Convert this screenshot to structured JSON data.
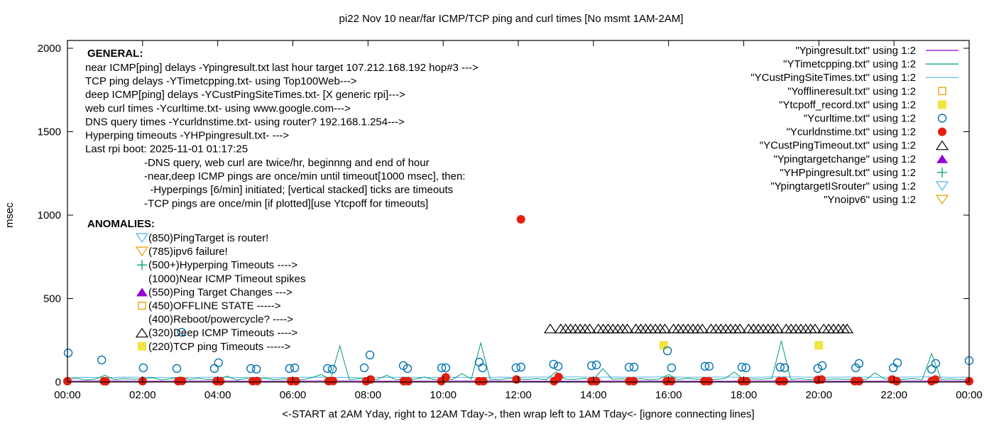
{
  "chart_data": {
    "type": "scatter",
    "title": "pi22 Nov 10  near/far ICMP/TCP ping and curl times [No msmt 1AM-2AM]",
    "xlabel": "<-START at 2AM Yday, right to 12AM Tday->, then wrap left to 1AM Tday<- [ignore connecting lines]",
    "ylabel": "msec",
    "xlim_hours": [
      0,
      24
    ],
    "ylim": [
      0,
      2000
    ],
    "x_ticks": [
      "00:00",
      "02:00",
      "04:00",
      "06:00",
      "08:00",
      "10:00",
      "12:00",
      "14:00",
      "16:00",
      "18:00",
      "20:00",
      "22:00",
      "00:00"
    ],
    "y_ticks": [
      "0",
      "500",
      "1000",
      "1500",
      "2000"
    ],
    "grid": false,
    "legend_position": "top-right",
    "annotations": {
      "general_heading": "GENERAL:",
      "general_lines": [
        "near ICMP[ping] delays -Ypingresult.txt last hour target 107.212.168.192 hop#3 --->",
        "TCP ping delays -YTimetcpping.txt- using Top100Web--->",
        "deep ICMP[ping] delays -YCustPingSiteTimes.txt- [X generic rpi]--->",
        "web curl times -Ycurltime.txt- using www.google.com--->",
        "DNS query times -Ycurldnstime.txt- using router? 192.168.1.254--->",
        "Hyperping timeouts -YHPpingresult.txt- --->",
        "Last rpi boot: 2025-11-01 01:17:25"
      ],
      "notes": [
        "-DNS query, web curl are twice/hr, beginnng and end of hour",
        "-near,deep ICMP pings are once/min until timeout[1000 msec], then:",
        "  -Hyperpings [6/min] initiated; [vertical stacked] ticks are timeouts",
        "-TCP pings are once/min [if plotted][use Ytcpoff for timeouts]"
      ],
      "anomalies_heading": "ANOMALIES:",
      "anomalies": [
        {
          "symbol": "triangle-down-open",
          "color": "#56b4e9",
          "text": "(850)PingTarget is router!"
        },
        {
          "symbol": "triangle-down-open",
          "color": "#e69f00",
          "text": "(785)ipv6 failure!"
        },
        {
          "symbol": "plus",
          "color": "#009e73",
          "text": "(500+)Hyperping Timeouts ---->"
        },
        {
          "symbol": "none",
          "color": "",
          "text": "(1000)Near ICMP Timeout spikes"
        },
        {
          "symbol": "triangle-up-filled",
          "color": "#9400d3",
          "text": "(550)Ping Target Changes --->"
        },
        {
          "symbol": "square-open",
          "color": "#e69f00",
          "text": "(450)OFFLINE STATE ----->"
        },
        {
          "symbol": "none",
          "color": "",
          "text": "(400)Reboot/powercycle? ---->"
        },
        {
          "symbol": "triangle-up-open",
          "color": "#000000",
          "text": "(320)Deep ICMP Timeouts ---->"
        },
        {
          "symbol": "square-filled",
          "color": "#f0e442",
          "text": "(220)TCP ping Timeouts ----->"
        }
      ]
    },
    "legend": [
      {
        "name": "\"Ypingresult.txt\" using 1:2",
        "symbol": "line",
        "color": "#9400d3"
      },
      {
        "name": "\"YTimetcpping.txt\" using 1:2",
        "symbol": "line",
        "color": "#009e73"
      },
      {
        "name": "\"YCustPingSiteTimes.txt\" using 1:2",
        "symbol": "line",
        "color": "#56b4e9"
      },
      {
        "name": "\"Yofflineresult.txt\" using 1:2",
        "symbol": "square-open",
        "color": "#e69f00"
      },
      {
        "name": "\"Ytcpoff_record.txt\" using 1:2",
        "symbol": "square-filled",
        "color": "#f0e442"
      },
      {
        "name": "\"Ycurltime.txt\" using 1:2",
        "symbol": "circle-open",
        "color": "#0072b2"
      },
      {
        "name": "\"Ycurldnstime.txt\" using 1:2",
        "symbol": "circle-filled",
        "color": "#e51e10"
      },
      {
        "name": "\"YCustPingTimeout.txt\" using 1:2",
        "symbol": "triangle-up-open",
        "color": "#000000"
      },
      {
        "name": "\"Ypingtargetchange\" using 1:2",
        "symbol": "triangle-up-filled",
        "color": "#9400d3"
      },
      {
        "name": "\"YHPpingresult.txt\" using 1:2",
        "symbol": "plus",
        "color": "#009e73"
      },
      {
        "name": "\"YpingtargetISrouter\" using 1:2",
        "symbol": "triangle-down-open",
        "color": "#56b4e9"
      },
      {
        "name": "\"Ynoipv6\" using 1:2",
        "symbol": "triangle-down-open",
        "color": "#e69f00"
      }
    ],
    "series": {
      "ping_hours_values": [
        [
          0,
          5
        ],
        [
          1,
          6
        ],
        [
          2,
          4
        ],
        [
          3,
          5
        ],
        [
          4,
          6
        ],
        [
          5,
          4
        ],
        [
          6,
          5
        ],
        [
          7,
          6
        ],
        [
          8,
          5
        ],
        [
          9,
          4
        ],
        [
          10,
          5
        ],
        [
          11,
          6
        ],
        [
          12,
          5
        ],
        [
          13,
          4
        ],
        [
          14,
          5
        ],
        [
          15,
          6
        ],
        [
          16,
          5
        ],
        [
          17,
          4
        ],
        [
          18,
          5
        ],
        [
          19,
          6
        ],
        [
          20,
          5
        ],
        [
          21,
          4
        ],
        [
          22,
          5
        ],
        [
          23,
          6
        ],
        [
          24,
          5
        ]
      ],
      "tcp_values_every_quarter_hour": [
        15,
        22,
        12,
        18,
        40,
        14,
        20,
        16,
        18,
        25,
        13,
        19,
        30,
        15,
        22,
        14,
        17,
        35,
        12,
        20,
        16,
        22,
        14,
        18,
        19,
        13,
        25,
        45,
        15,
        217,
        14,
        20,
        18,
        15,
        40,
        13,
        22,
        16,
        30,
        14,
        19,
        15,
        50,
        18,
        234,
        16,
        14,
        22,
        18,
        15,
        20,
        13,
        60,
        17,
        15,
        22,
        14,
        80,
        16,
        19,
        15,
        20,
        13,
        17,
        45,
        14,
        22,
        16,
        18,
        15,
        20,
        60,
        14,
        18,
        16,
        22,
        247,
        15,
        19,
        14,
        20,
        16,
        18,
        15,
        21,
        14,
        55,
        17,
        19,
        15,
        20,
        14,
        170,
        16,
        18,
        15,
        14
      ],
      "cust_values_every_half_hour": [
        27,
        28,
        26,
        29,
        28,
        27,
        26,
        28,
        29,
        27,
        28,
        26,
        27,
        29,
        28,
        27,
        26,
        28,
        29,
        27,
        28,
        27,
        26,
        29,
        28,
        30,
        29,
        31,
        28,
        30,
        29,
        30,
        31,
        28,
        29,
        30,
        28,
        29,
        31,
        30,
        28,
        29,
        30,
        28,
        29,
        30,
        31,
        28,
        29
      ],
      "curl": [
        [
          0.02,
          174
        ],
        [
          0.91,
          132
        ],
        [
          2.02,
          85
        ],
        [
          2.91,
          81
        ],
        [
          3.04,
          298
        ],
        [
          3.91,
          81
        ],
        [
          4.02,
          115
        ],
        [
          4.88,
          81
        ],
        [
          5.03,
          77
        ],
        [
          5.91,
          81
        ],
        [
          6.05,
          85
        ],
        [
          6.92,
          81
        ],
        [
          7.05,
          77
        ],
        [
          7.9,
          85
        ],
        [
          8.05,
          162
        ],
        [
          8.94,
          98
        ],
        [
          9.05,
          81
        ],
        [
          9.96,
          85
        ],
        [
          10.07,
          85
        ],
        [
          10.96,
          119
        ],
        [
          11.05,
          85
        ],
        [
          11.94,
          85
        ],
        [
          12.07,
          89
        ],
        [
          12.94,
          106
        ],
        [
          13.06,
          94
        ],
        [
          13.95,
          98
        ],
        [
          14.08,
          102
        ],
        [
          14.95,
          89
        ],
        [
          15.08,
          89
        ],
        [
          15.97,
          187
        ],
        [
          16.08,
          85
        ],
        [
          16.97,
          94
        ],
        [
          17.08,
          94
        ],
        [
          17.95,
          89
        ],
        [
          18.06,
          85
        ],
        [
          18.97,
          89
        ],
        [
          19.09,
          85
        ],
        [
          19.97,
          81
        ],
        [
          20.09,
          98
        ],
        [
          20.98,
          85
        ],
        [
          21.07,
          111
        ],
        [
          21.98,
          85
        ],
        [
          22.09,
          115
        ],
        [
          23.0,
          77
        ],
        [
          23.11,
          111
        ],
        [
          24.0,
          128
        ]
      ],
      "dns": [
        [
          0.0,
          5
        ],
        [
          0.97,
          5
        ],
        [
          1.02,
          4
        ],
        [
          2.0,
          5
        ],
        [
          2.95,
          5
        ],
        [
          3.05,
          6
        ],
        [
          3.97,
          5
        ],
        [
          4.07,
          5
        ],
        [
          4.93,
          5
        ],
        [
          5.05,
          6
        ],
        [
          5.95,
          5
        ],
        [
          6.08,
          5
        ],
        [
          6.95,
          5
        ],
        [
          7.07,
          6
        ],
        [
          7.95,
          5
        ],
        [
          8.07,
          15
        ],
        [
          8.95,
          5
        ],
        [
          9.07,
          5
        ],
        [
          9.95,
          5
        ],
        [
          10.07,
          28
        ],
        [
          10.95,
          5
        ],
        [
          11.07,
          5
        ],
        [
          11.95,
          15
        ],
        [
          12.07,
          975
        ],
        [
          12.95,
          5
        ],
        [
          13.07,
          30
        ],
        [
          13.95,
          5
        ],
        [
          14.07,
          5
        ],
        [
          14.95,
          5
        ],
        [
          15.07,
          5
        ],
        [
          15.95,
          5
        ],
        [
          16.07,
          5
        ],
        [
          16.95,
          5
        ],
        [
          17.07,
          5
        ],
        [
          17.95,
          5
        ],
        [
          18.07,
          5
        ],
        [
          18.95,
          5
        ],
        [
          19.07,
          5
        ],
        [
          19.97,
          12
        ],
        [
          20.07,
          15
        ],
        [
          20.95,
          5
        ],
        [
          21.07,
          5
        ],
        [
          21.95,
          15
        ],
        [
          22.07,
          5
        ],
        [
          23.0,
          5
        ],
        [
          23.1,
          15
        ],
        [
          24.0,
          5
        ]
      ],
      "cust_ping_timeouts_value": 320,
      "cust_ping_timeouts_hours": [
        12.85,
        13.13,
        13.26,
        13.39,
        13.52,
        13.65,
        13.78,
        13.9,
        14.13,
        14.26,
        14.39,
        14.52,
        14.65,
        14.78,
        14.9,
        15.13,
        15.26,
        15.39,
        15.52,
        15.65,
        15.78,
        15.9,
        16.13,
        16.26,
        16.39,
        16.52,
        16.65,
        16.78,
        16.9,
        17.13,
        17.26,
        17.39,
        17.52,
        17.65,
        17.78,
        17.9,
        18.13,
        18.26,
        18.39,
        18.52,
        18.65,
        18.78,
        18.9,
        19.13,
        19.26,
        19.39,
        19.52,
        19.65,
        19.78,
        19.9,
        20.13,
        20.26,
        20.39,
        20.52,
        20.65,
        20.75
      ],
      "tcp_timeouts": [
        [
          15.87,
          220
        ],
        [
          20.0,
          220
        ]
      ]
    }
  }
}
